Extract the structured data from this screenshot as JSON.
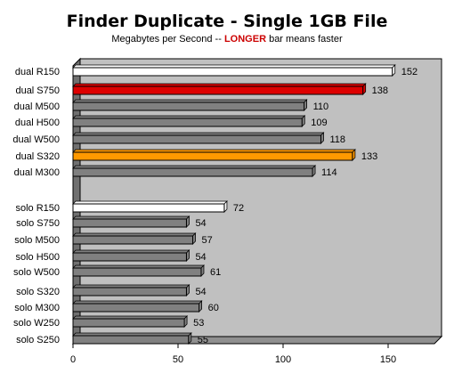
{
  "chart_data": {
    "type": "bar",
    "orientation": "horizontal",
    "title": "Finder Duplicate - Single 1GB File",
    "subtitle": {
      "before": "Megabytes per Second -- ",
      "highlight": "LONGER",
      "after": " bar means faster"
    },
    "categories": [
      "dual R150",
      "dual S750",
      "dual M500",
      "dual H500",
      "dual W500",
      "dual S320",
      "dual M300",
      "solo R150",
      "solo S750",
      "solo M500",
      "solo H500",
      "solo W500",
      "solo S320",
      "solo M300",
      "solo W250",
      "solo S250"
    ],
    "values": [
      152,
      138,
      110,
      109,
      118,
      133,
      114,
      72,
      54,
      57,
      54,
      61,
      54,
      60,
      53,
      55
    ],
    "bar_colors": [
      "#ffffff",
      "#dd0000",
      "#808080",
      "#808080",
      "#808080",
      "#ff9900",
      "#808080",
      "#ffffff",
      "#808080",
      "#808080",
      "#808080",
      "#808080",
      "#808080",
      "#808080",
      "#808080",
      "#808080"
    ],
    "x_ticks": [
      0,
      50,
      100,
      150
    ],
    "xlim": [
      0,
      172
    ],
    "grid": false,
    "colors": {
      "plot_background": "#c0c0c0",
      "highlight_text": "#cc0000"
    }
  }
}
